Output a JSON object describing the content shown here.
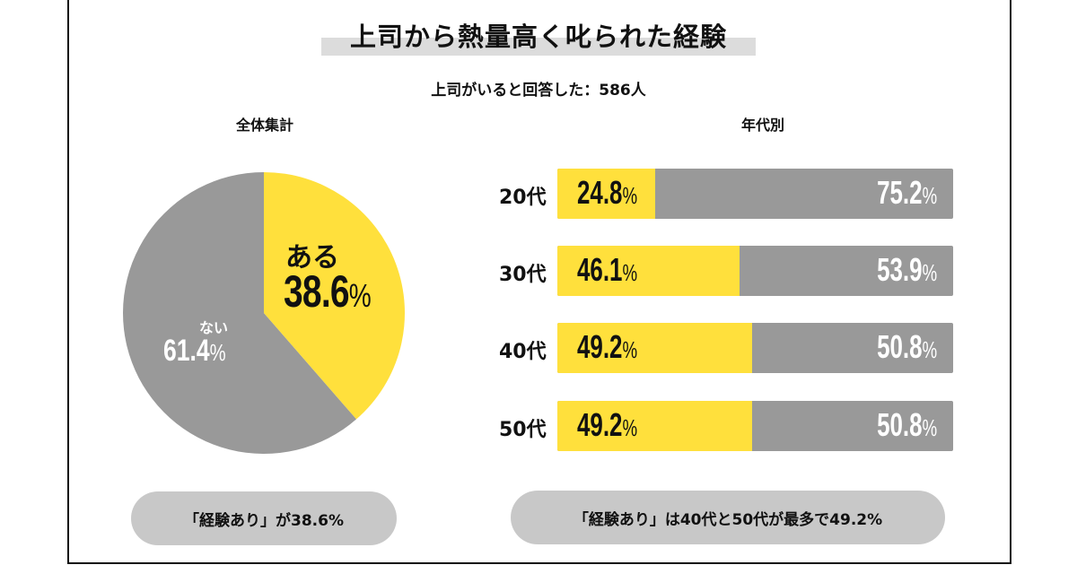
{
  "title": "上司から熱量高く叱られた経験",
  "subtitle": "上司がいると回答した：586人",
  "colors": {
    "yes": "#ffe03c",
    "no": "#999999",
    "band": "#dcdcdc",
    "pill": "#c8c8c8"
  },
  "chart_data": [
    {
      "type": "pie",
      "title": "全体集計",
      "slices": [
        {
          "label": "ある",
          "value": 38.6,
          "display": "38.6",
          "unit": "%",
          "color": "#ffe03c"
        },
        {
          "label": "ない",
          "value": 61.4,
          "display": "61.4",
          "unit": "%",
          "color": "#999999"
        }
      ]
    },
    {
      "type": "bar",
      "orientation": "horizontal",
      "stacked": true,
      "title": "年代別",
      "categories": [
        "20代",
        "30代",
        "40代",
        "50代"
      ],
      "series": [
        {
          "name": "ある",
          "color": "#ffe03c",
          "values": [
            24.8,
            46.1,
            49.2,
            49.2
          ],
          "labels": [
            "24.8",
            "46.1",
            "49.2",
            "49.2"
          ]
        },
        {
          "name": "ない",
          "color": "#999999",
          "values": [
            75.2,
            53.9,
            50.8,
            50.8
          ],
          "labels": [
            "75.2",
            "53.9",
            "50.8",
            "50.8"
          ]
        }
      ],
      "xlim": [
        0,
        100
      ],
      "unit": "%"
    }
  ],
  "summaries": {
    "left": "「経験あり」が38.6%",
    "right": "「経験あり」は40代と50代が最多で49.2%"
  }
}
